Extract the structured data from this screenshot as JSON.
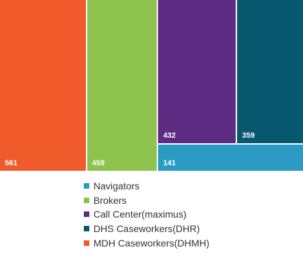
{
  "chart_data": {
    "type": "treemap",
    "series": [
      {
        "name": "MDH Caseworkers(DHMH)",
        "value": 561,
        "label": "561",
        "color": "#f15a2b"
      },
      {
        "name": "Brokers",
        "value": 459,
        "label": "459",
        "color": "#8dc24c"
      },
      {
        "name": "Call Center(maximus)",
        "value": 432,
        "label": "432",
        "color": "#5e2b82"
      },
      {
        "name": "DHS Caseworkers(DHR)",
        "value": 359,
        "label": "359",
        "color": "#07586f"
      },
      {
        "name": "Navigators",
        "value": 141,
        "label": "141",
        "color": "#2b9bc4"
      }
    ],
    "legend": {
      "position": "bottom",
      "items": [
        {
          "label": "Navigators",
          "color": "#2b9bc4"
        },
        {
          "label": "Brokers",
          "color": "#8dc24c"
        },
        {
          "label": "Call Center(maximus)",
          "color": "#5e2b82"
        },
        {
          "label": "DHS Caseworkers(DHR)",
          "color": "#07586f"
        },
        {
          "label": "MDH Caseworkers(DHMH)",
          "color": "#f15a2b"
        }
      ]
    }
  }
}
